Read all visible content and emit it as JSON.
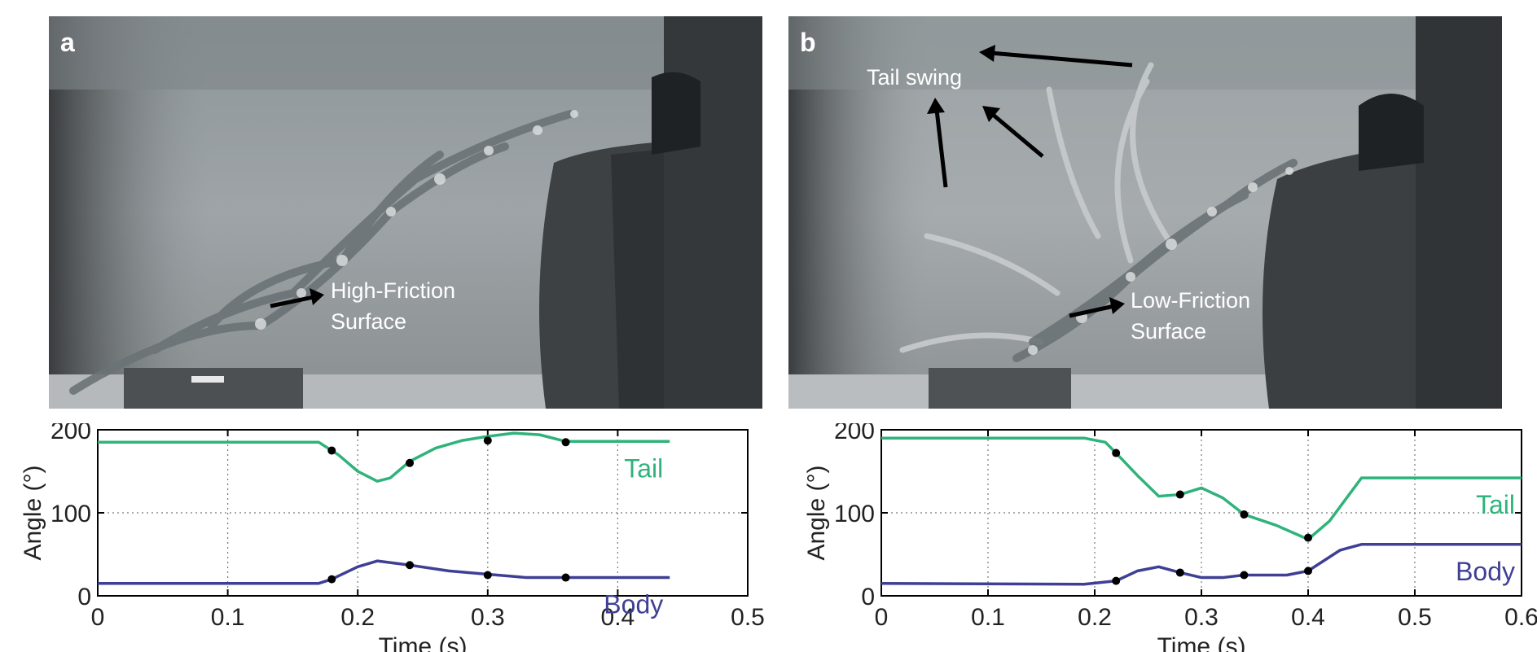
{
  "panels": [
    {
      "letter": "a",
      "surface_label_line1": "High-Friction",
      "surface_label_line2": "Surface"
    },
    {
      "letter": "b",
      "annotation": "Tail swing",
      "surface_label_line1": "Low-Friction",
      "surface_label_line2": "Surface"
    }
  ],
  "colors": {
    "tail": "#2fb37b",
    "body": "#3f3f95"
  },
  "chart_data": [
    {
      "type": "line",
      "xlabel": "Time (s)",
      "ylabel": "Angle (°)",
      "xlim": [
        0,
        0.5
      ],
      "ylim": [
        0,
        200
      ],
      "xticks": [
        "0",
        "0.1",
        "0.2",
        "0.3",
        "0.4",
        "0.5"
      ],
      "yticks": [
        "0",
        "100",
        "200"
      ],
      "grid": true,
      "series": [
        {
          "name": "Tail",
          "x": [
            0,
            0.17,
            0.185,
            0.2,
            0.215,
            0.225,
            0.24,
            0.26,
            0.28,
            0.3,
            0.32,
            0.34,
            0.36,
            0.44
          ],
          "y": [
            185,
            185,
            170,
            150,
            138,
            142,
            162,
            178,
            187,
            192,
            196,
            194,
            186,
            186
          ]
        },
        {
          "name": "Body",
          "x": [
            0,
            0.17,
            0.18,
            0.2,
            0.215,
            0.24,
            0.27,
            0.3,
            0.33,
            0.36,
            0.44
          ],
          "y": [
            15,
            15,
            20,
            35,
            42,
            37,
            30,
            26,
            22,
            22,
            22
          ]
        }
      ],
      "markers": {
        "Tail": [
          [
            0.18,
            175
          ],
          [
            0.24,
            160
          ],
          [
            0.3,
            187
          ],
          [
            0.36,
            185
          ]
        ],
        "Body": [
          [
            0.18,
            20
          ],
          [
            0.24,
            37
          ],
          [
            0.3,
            25
          ],
          [
            0.36,
            22
          ]
        ]
      }
    },
    {
      "type": "line",
      "xlabel": "Time (s)",
      "ylabel": "Angle (°)",
      "xlim": [
        0,
        0.6
      ],
      "ylim": [
        0,
        200
      ],
      "xticks": [
        "0",
        "0.1",
        "0.2",
        "0.3",
        "0.4",
        "0.5",
        "0.6"
      ],
      "yticks": [
        "0",
        "100",
        "200"
      ],
      "grid": true,
      "series": [
        {
          "name": "Tail",
          "x": [
            0,
            0.19,
            0.21,
            0.22,
            0.24,
            0.26,
            0.28,
            0.3,
            0.32,
            0.34,
            0.37,
            0.4,
            0.42,
            0.45,
            0.6
          ],
          "y": [
            190,
            190,
            185,
            172,
            145,
            120,
            122,
            130,
            118,
            98,
            85,
            68,
            90,
            142,
            142
          ]
        },
        {
          "name": "Body",
          "x": [
            0,
            0.19,
            0.22,
            0.24,
            0.26,
            0.28,
            0.3,
            0.32,
            0.34,
            0.38,
            0.4,
            0.43,
            0.45,
            0.6
          ],
          "y": [
            15,
            14,
            18,
            30,
            35,
            28,
            22,
            22,
            25,
            25,
            30,
            55,
            62,
            62
          ]
        }
      ],
      "markers": {
        "Tail": [
          [
            0.22,
            172
          ],
          [
            0.28,
            122
          ],
          [
            0.34,
            98
          ],
          [
            0.4,
            70
          ]
        ],
        "Body": [
          [
            0.22,
            18
          ],
          [
            0.28,
            28
          ],
          [
            0.34,
            25
          ],
          [
            0.4,
            30
          ]
        ]
      }
    }
  ]
}
